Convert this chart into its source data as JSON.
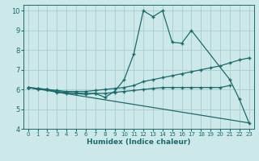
{
  "xlabel": "Humidex (Indice chaleur)",
  "xlim": [
    -0.5,
    23.5
  ],
  "ylim": [
    4,
    10.3
  ],
  "xticks": [
    0,
    1,
    2,
    3,
    4,
    5,
    6,
    7,
    8,
    9,
    10,
    11,
    12,
    13,
    14,
    15,
    16,
    17,
    18,
    19,
    20,
    21,
    22,
    23
  ],
  "yticks": [
    4,
    5,
    6,
    7,
    8,
    9,
    10
  ],
  "bg_color": "#cce8e8",
  "grid_color": "#aacccc",
  "line_color": "#1a6b6b",
  "lines": [
    {
      "x": [
        0,
        1,
        2,
        3,
        4,
        5,
        6,
        7,
        8,
        9,
        10,
        11,
        12,
        13,
        14,
        15,
        16,
        17,
        21,
        22,
        23
      ],
      "y": [
        6.1,
        6.0,
        6.0,
        5.85,
        5.8,
        5.8,
        5.75,
        5.8,
        5.6,
        5.9,
        6.5,
        7.8,
        10.0,
        9.7,
        10.0,
        8.4,
        8.35,
        9.0,
        6.5,
        5.5,
        4.3
      ],
      "markers": true
    },
    {
      "x": [
        0,
        1,
        2,
        3,
        4,
        5,
        6,
        7,
        8,
        9,
        10,
        11,
        12,
        13,
        14,
        15,
        16,
        17,
        18,
        19,
        20,
        21,
        22,
        23
      ],
      "y": [
        6.1,
        6.05,
        6.0,
        5.95,
        5.9,
        5.9,
        5.9,
        5.95,
        6.0,
        6.05,
        6.1,
        6.2,
        6.4,
        6.5,
        6.6,
        6.7,
        6.8,
        6.9,
        7.0,
        7.1,
        7.2,
        7.35,
        7.5,
        7.6
      ],
      "markers": true
    },
    {
      "x": [
        0,
        1,
        2,
        3,
        4,
        5,
        6,
        7,
        8,
        9,
        10,
        11,
        12,
        13,
        14,
        15,
        16,
        17,
        18,
        19,
        20,
        21
      ],
      "y": [
        6.1,
        6.05,
        6.0,
        5.9,
        5.85,
        5.82,
        5.8,
        5.8,
        5.8,
        5.85,
        5.9,
        5.95,
        6.0,
        6.05,
        6.1,
        6.1,
        6.1,
        6.1,
        6.1,
        6.1,
        6.1,
        6.2
      ],
      "markers": true
    },
    {
      "x": [
        0,
        23
      ],
      "y": [
        6.1,
        4.3
      ],
      "markers": false
    }
  ]
}
